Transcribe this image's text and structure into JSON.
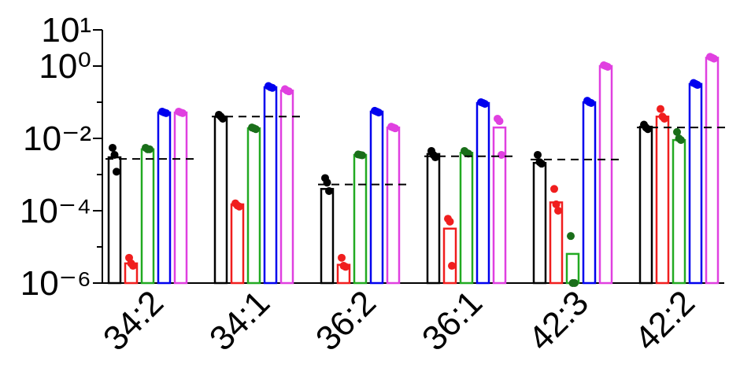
{
  "chart_data": {
    "type": "bar",
    "categories": [
      "34:2",
      "34:1",
      "36:2",
      "36:1",
      "42:3",
      "42:2"
    ],
    "log_scale": true,
    "ylim": [
      1e-06,
      10
    ],
    "yticks": [
      {
        "value": 1e-06,
        "label": "10⁻⁶"
      },
      {
        "value": 0.0001,
        "label": "10⁻⁴"
      },
      {
        "value": 0.01,
        "label": "10⁻²"
      },
      {
        "value": 1,
        "label": "10⁰"
      },
      {
        "value": 10,
        "label": "10¹"
      }
    ],
    "yminor_ticks": [
      1e-05,
      0.001,
      0.1
    ],
    "reference_lines": [
      0.0027,
      0.04,
      0.00053,
      0.0032,
      0.0026,
      0.02
    ],
    "series": [
      {
        "color": "#000000",
        "point_color": "#000000",
        "values": [
          0.003,
          0.04,
          0.0004,
          0.0037,
          0.0021,
          0.021
        ],
        "points": [
          [
            0.0055,
            0.0035,
            0.0012
          ],
          [
            0.045,
            0.04,
            0.035
          ],
          [
            0.0008,
            0.0006,
            0.00035
          ],
          [
            0.0045,
            0.0035,
            0.003
          ],
          [
            0.0035,
            0.0022,
            0.002
          ],
          [
            0.024,
            0.02,
            0.018
          ]
        ]
      },
      {
        "color": "#f01e1e",
        "point_color": "#f01e1e",
        "values": [
          3.5e-06,
          0.00015,
          3.2e-06,
          3.2e-05,
          0.00017,
          0.04
        ],
        "points": [
          [
            5e-06,
            3.5e-06,
            3e-06
          ],
          [
            0.00016,
            0.00014,
            0.00013
          ],
          [
            5e-06,
            3e-06,
            2.8e-06
          ],
          [
            6e-05,
            5e-05,
            3e-06
          ],
          [
            0.0004,
            0.00015,
            0.0001
          ],
          [
            0.065,
            0.04,
            0.035
          ]
        ]
      },
      {
        "color": "#22aa22",
        "point_color": "#1a6e1a",
        "values": [
          0.005,
          0.019,
          0.0035,
          0.004,
          6.4e-06,
          0.009
        ],
        "points": [
          [
            0.0055,
            0.005,
            0.005
          ],
          [
            0.02,
            0.019,
            0.018
          ],
          [
            0.0036,
            0.0035,
            0.0034
          ],
          [
            0.0045,
            0.004,
            0.0038
          ],
          [
            2e-05,
            1e-06,
            1e-06
          ],
          [
            0.015,
            0.01,
            0.009
          ]
        ]
      },
      {
        "color": "#0000ee",
        "point_color": "#0000ee",
        "values": [
          0.052,
          0.26,
          0.055,
          0.095,
          0.1,
          0.32
        ],
        "points": [
          [
            0.055,
            0.052,
            0.05
          ],
          [
            0.28,
            0.26,
            0.25
          ],
          [
            0.058,
            0.055,
            0.052
          ],
          [
            0.1,
            0.095,
            0.09
          ],
          [
            0.11,
            0.1,
            0.095
          ],
          [
            0.34,
            0.32,
            0.3
          ]
        ]
      },
      {
        "color": "#e040e0",
        "point_color": "#e040e0",
        "values": [
          0.052,
          0.21,
          0.02,
          0.02,
          1,
          1.7
        ],
        "points": [
          [
            0.055,
            0.052,
            0.05
          ],
          [
            0.23,
            0.21,
            0.2
          ],
          [
            0.021,
            0.02,
            0.019
          ],
          [
            0.035,
            0.03,
            0.0035
          ],
          [
            1.05,
            1,
            0.95
          ],
          [
            1.8,
            1.7,
            1.6
          ]
        ]
      }
    ]
  }
}
